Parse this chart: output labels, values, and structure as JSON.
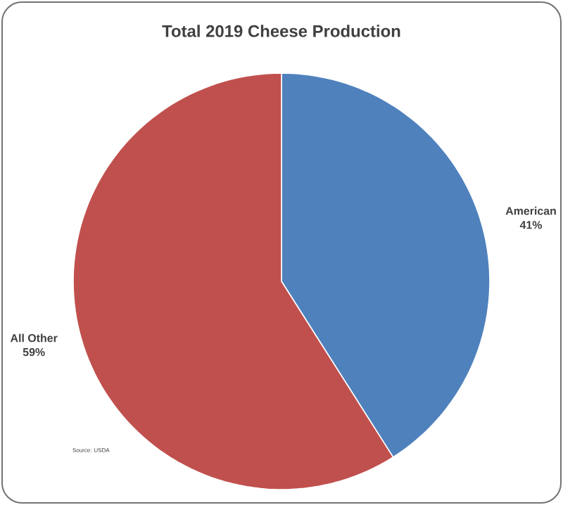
{
  "chart_data": {
    "type": "pie",
    "title": "Total 2019 Cheese Production",
    "categories": [
      "American",
      "All Other"
    ],
    "values": [
      41,
      59
    ],
    "colors": [
      "#4f81bd",
      "#c0504d"
    ],
    "value_labels": [
      "41%",
      "59%"
    ],
    "annotations": [
      "Source: USDA"
    ]
  }
}
